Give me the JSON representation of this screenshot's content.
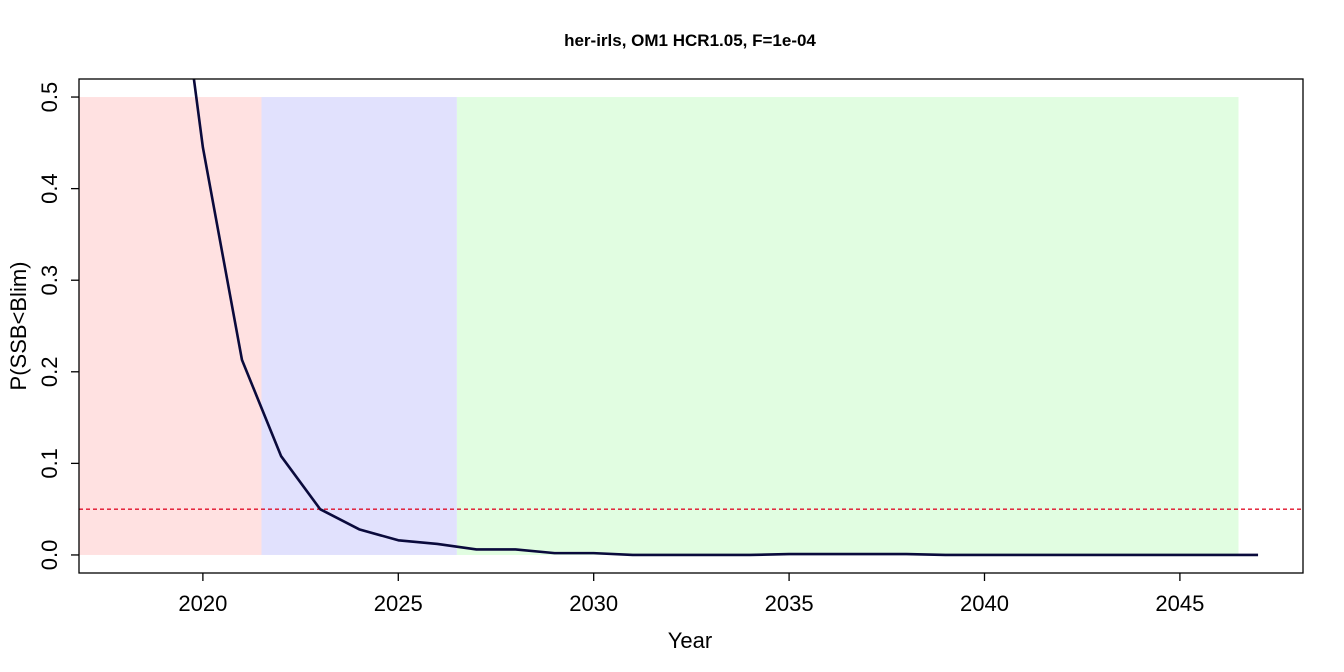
{
  "chart_data": {
    "type": "line",
    "title": "her-irls, OM1 HCR1.05, F=1e-04",
    "x_label": "Year",
    "y_label": "P(SSB<Blim)",
    "x": [
      2019,
      2020,
      2021,
      2022,
      2023,
      2024,
      2025,
      2026,
      2027,
      2028,
      2029,
      2030,
      2031,
      2032,
      2033,
      2034,
      2035,
      2036,
      2037,
      2038,
      2039,
      2040,
      2041,
      2042,
      2043,
      2044,
      2045,
      2046,
      2047
    ],
    "series": [
      {
        "color": "#0a0a3c",
        "values": [
          0.77,
          0.445,
          0.213,
          0.108,
          0.05,
          0.028,
          0.016,
          0.012,
          0.006,
          0.006,
          0.002,
          0.002,
          0.0,
          0.0,
          0.0,
          0.0,
          0.001,
          0.001,
          0.001,
          0.001,
          0.0,
          0.0,
          0.0,
          0.0,
          0.0,
          0.0,
          0.0,
          0.0,
          0.0
        ]
      }
    ],
    "regions": [
      {
        "from": 2016.5,
        "to": 2021.5,
        "color": "#ffe1e1"
      },
      {
        "from": 2021.5,
        "to": 2026.5,
        "color": "#e1e1fd"
      },
      {
        "from": 2026.5,
        "to": 2046.5,
        "color": "#e1fde1"
      }
    ],
    "region_top": 0.5,
    "region_bottom": 0,
    "hline": {
      "value": 0.05,
      "color": "#e0102a"
    },
    "xlim": [
      2016.83,
      2048.15
    ],
    "ylim": [
      -0.0197,
      0.5197
    ],
    "xticks": [
      2020,
      2025,
      2030,
      2035,
      2040,
      2045
    ],
    "yticks": [
      {
        "value": 0,
        "label": "0.0"
      },
      0.1,
      0.2,
      0.3,
      0.4,
      0.5
    ]
  }
}
